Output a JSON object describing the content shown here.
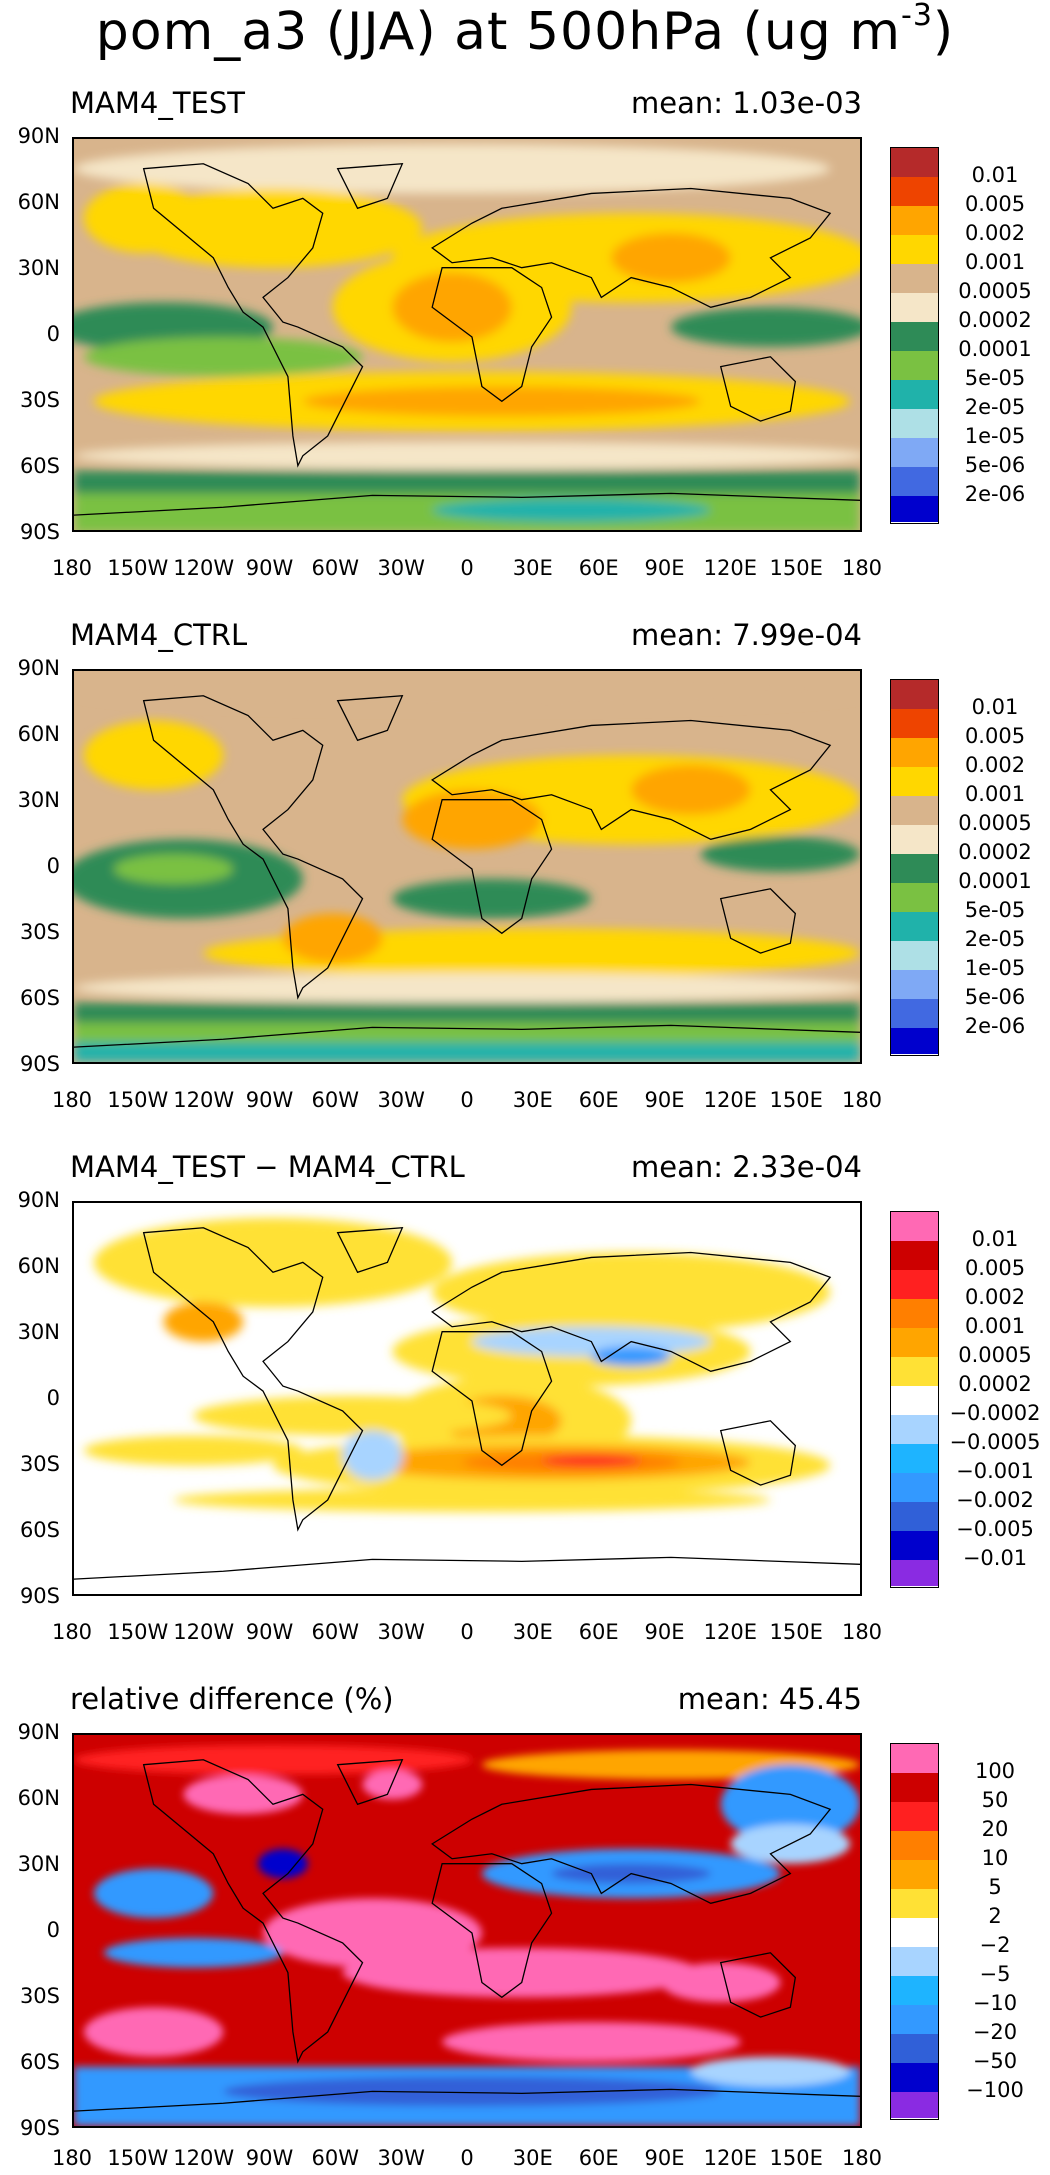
{
  "title": {
    "main": "pom_a3 (JJA) at 500hPa (ug m",
    "exponent": "-3",
    "close": ")"
  },
  "lat_labels": [
    "90N",
    "60N",
    "30N",
    "0",
    "30S",
    "60S",
    "90S"
  ],
  "lon_labels": [
    "180",
    "150W",
    "120W",
    "90W",
    "60W",
    "30W",
    "0",
    "30E",
    "60E",
    "90E",
    "120E",
    "150E",
    "180"
  ],
  "panels": [
    {
      "title": "MAM4_TEST",
      "mean": "mean: 1.03e-03",
      "colors": [
        "#b52a2a",
        "#ee4400",
        "#ffa500",
        "#ffd700",
        "#d8b48c",
        "#f5e6c8",
        "#2e8b57",
        "#7ac142",
        "#20b2aa",
        "#aee0e6",
        "#7fa9f5",
        "#4169e1",
        "#0000cd"
      ],
      "labels": [
        "0.01",
        "0.005",
        "0.002",
        "0.001",
        "0.0005",
        "0.0002",
        "0.0001",
        "5e-05",
        "2e-05",
        "1e-05",
        "5e-06",
        "2e-06"
      ]
    },
    {
      "title": "MAM4_CTRL",
      "mean": "mean: 7.99e-04",
      "colors": [
        "#b52a2a",
        "#ee4400",
        "#ffa500",
        "#ffd700",
        "#d8b48c",
        "#f5e6c8",
        "#2e8b57",
        "#7ac142",
        "#20b2aa",
        "#aee0e6",
        "#7fa9f5",
        "#4169e1",
        "#0000cd"
      ],
      "labels": [
        "0.01",
        "0.005",
        "0.002",
        "0.001",
        "0.0005",
        "0.0002",
        "0.0001",
        "5e-05",
        "2e-05",
        "1e-05",
        "5e-06",
        "2e-06"
      ]
    },
    {
      "title": "MAM4_TEST − MAM4_CTRL",
      "mean": "mean: 2.33e-04",
      "colors": [
        "#ff69b4",
        "#cd0000",
        "#ff2020",
        "#ff7f00",
        "#ffa500",
        "#ffe135",
        "#ffffff",
        "#a8d4ff",
        "#1eb4ff",
        "#3399ff",
        "#3060d8",
        "#0000cd",
        "#8a2be2"
      ],
      "labels": [
        "0.01",
        "0.005",
        "0.002",
        "0.001",
        "0.0005",
        "0.0002",
        "−0.0002",
        "−0.0005",
        "−0.001",
        "−0.002",
        "−0.005",
        "−0.01"
      ]
    },
    {
      "title": "relative difference (%)",
      "mean": "mean: 45.45",
      "colors": [
        "#ff69b4",
        "#cd0000",
        "#ff2020",
        "#ff7f00",
        "#ffa500",
        "#ffe135",
        "#ffffff",
        "#a8d4ff",
        "#1eb4ff",
        "#3399ff",
        "#3060d8",
        "#0000cd",
        "#8a2be2"
      ],
      "labels": [
        "100",
        "50",
        "20",
        "10",
        "5",
        "2",
        "−2",
        "−5",
        "−10",
        "−20",
        "−50",
        "−100"
      ]
    }
  ]
}
